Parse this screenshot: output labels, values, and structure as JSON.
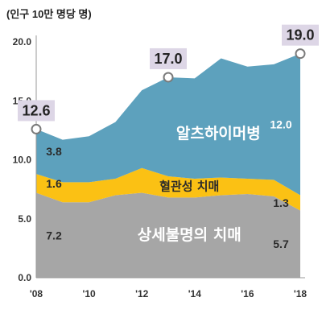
{
  "chart_data": {
    "type": "area",
    "stacked": true,
    "unit_label": "(인구 10만 명당 명)",
    "x_tick_labels": [
      "'08",
      "'10",
      "'12",
      "'14",
      "'16",
      "'18"
    ],
    "y_tick_labels": [
      "0.0",
      "5.0",
      "10.0",
      "15.0",
      "20.0"
    ],
    "x": [
      2008,
      2009,
      2010,
      2011,
      2012,
      2013,
      2014,
      2015,
      2016,
      2017,
      2018
    ],
    "ylim": [
      0,
      20
    ],
    "xlim": [
      2008,
      2018
    ],
    "grid": false,
    "legend": "none",
    "series": [
      {
        "name": "상세불명의 치매",
        "color": "#a6a6a6",
        "values": [
          7.2,
          6.4,
          6.4,
          7.0,
          7.2,
          6.8,
          6.8,
          7.0,
          7.1,
          6.9,
          5.7
        ]
      },
      {
        "name": "혈관성 치매",
        "color": "#fbc114",
        "values": [
          1.6,
          1.7,
          1.7,
          1.4,
          2.1,
          1.8,
          1.6,
          1.5,
          1.3,
          1.4,
          1.3
        ]
      },
      {
        "name": "알츠하이머병",
        "color": "#5da1bd",
        "values": [
          3.8,
          3.6,
          3.9,
          4.8,
          6.6,
          8.4,
          8.5,
          10.1,
          9.5,
          9.8,
          12.0
        ]
      }
    ],
    "value_labels": [
      {
        "series": 0,
        "x": 2008,
        "text": "7.2"
      },
      {
        "series": 1,
        "x": 2008,
        "text": "1.6"
      },
      {
        "series": 2,
        "x": 2008,
        "text": "3.8"
      },
      {
        "series": 0,
        "x": 2018,
        "text": "5.7"
      },
      {
        "series": 1,
        "x": 2018,
        "text": "1.3"
      },
      {
        "series": 2,
        "x": 2018,
        "text": "12.0"
      }
    ],
    "total_markers": [
      {
        "x": 2008,
        "value": 12.6,
        "text": "12.6"
      },
      {
        "x": 2013,
        "value": 17.0,
        "text": "17.0"
      },
      {
        "x": 2018,
        "value": 19.0,
        "text": "19.0"
      }
    ]
  },
  "colors": {
    "marker_box": "#ddd6e6",
    "marker_ring": "#7a7a7a",
    "value_text_dark": "#2b2b2b",
    "value_text_light": "#ffffff",
    "axis": "#999999"
  }
}
